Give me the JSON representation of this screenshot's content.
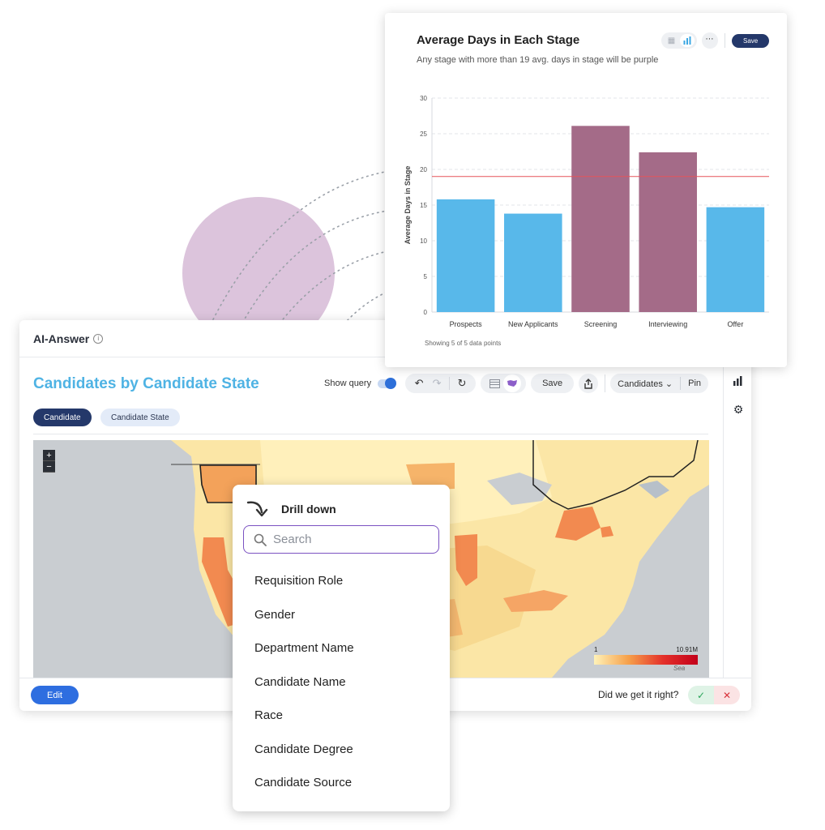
{
  "main": {
    "header_title": "AI-Answer",
    "title": "Candidates by Candidate State",
    "show_query_label": "Show query",
    "save_label": "Save",
    "candidates_label": "Candidates",
    "pin_label": "Pin",
    "chips": [
      "Candidate",
      "Candidate State"
    ],
    "edit_label": "Edit",
    "feedback_question": "Did we get it right?",
    "map_legend_min": "1",
    "map_legend_max": "10.91M",
    "map_sea_label": "Sea",
    "colors": {
      "accent_title": "#4fb3e4",
      "primary": "#2e6ee0",
      "chip_dark": "#24386a"
    }
  },
  "chart": {
    "title": "Average Days in Each Stage",
    "subtitle": "Any stage with more than 19 avg. days in stage will be purple",
    "save_label": "Save",
    "footer": "Showing 5 of 5 data points"
  },
  "chart_data": {
    "type": "bar",
    "title": "Average Days in Each Stage",
    "xlabel": "",
    "ylabel": "Average Days in Stage",
    "categories": [
      "Prospects",
      "New Applicants",
      "Screening",
      "Interviewing",
      "Offer"
    ],
    "values": [
      15.8,
      13.8,
      26.1,
      22.4,
      14.7
    ],
    "ylim": [
      0,
      30
    ],
    "yticks": [
      0,
      5,
      10,
      15,
      20,
      25,
      30
    ],
    "threshold": 19,
    "colors": {
      "below": "#58b8ea",
      "above": "#a46b88",
      "threshold_line": "#e5545a"
    },
    "grid": true
  },
  "drill": {
    "title": "Drill down",
    "search_placeholder": "Search",
    "items": [
      "Requisition Role",
      "Gender",
      "Department Name",
      "Candidate Name",
      "Race",
      "Candidate Degree",
      "Candidate Source"
    ]
  }
}
